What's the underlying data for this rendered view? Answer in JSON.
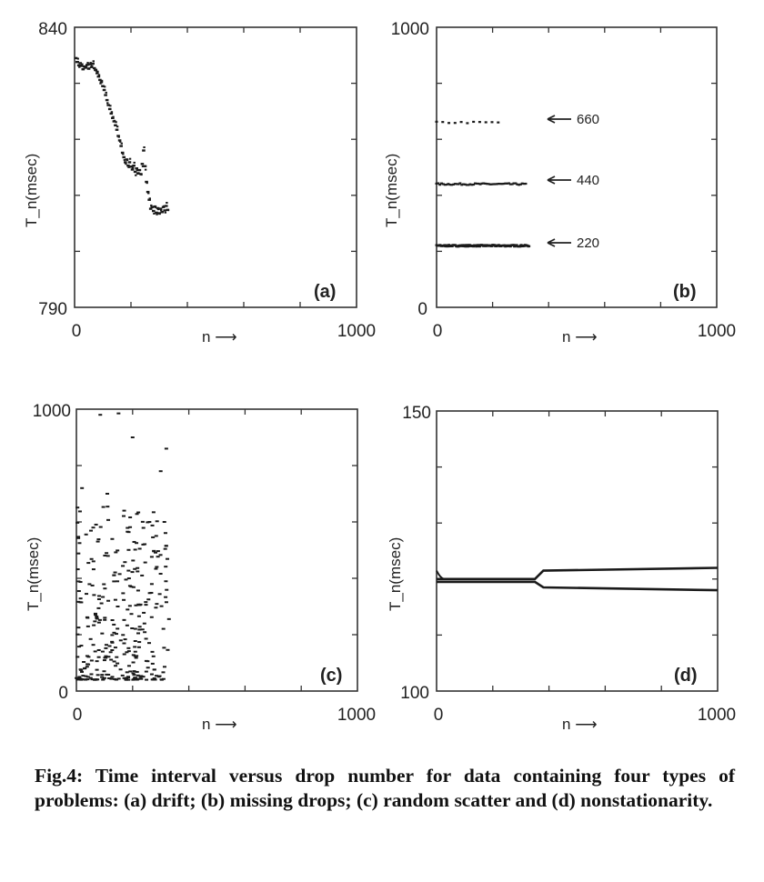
{
  "caption": "Fig.4: Time interval versus drop number for data containing four types of problems: (a) drift; (b) missing drops; (c) random scatter and (d) nonstationarity.",
  "colors": {
    "ink": "#222222",
    "frame": "#333333",
    "points": "#1a1a1a"
  },
  "chart_data": [
    {
      "panel": "(a)",
      "type": "scatter",
      "xlabel": "n",
      "ylabel": "T_n(msec)",
      "xlim": [
        0,
        1000
      ],
      "ylim": [
        790,
        840
      ],
      "x_ticks": [
        "0",
        "1000"
      ],
      "y_ticks": [
        "790",
        "840"
      ],
      "series": [
        {
          "points": [
            [
              5,
              834.5
            ],
            [
              10,
              833.8
            ],
            [
              15,
              833.2
            ],
            [
              20,
              833.6
            ],
            [
              25,
              833.1
            ],
            [
              30,
              832.5
            ],
            [
              35,
              833.0
            ],
            [
              40,
              832.8
            ],
            [
              45,
              833.3
            ],
            [
              50,
              832.6
            ],
            [
              55,
              833.4
            ],
            [
              60,
              832.9
            ],
            [
              65,
              833.5
            ],
            [
              70,
              832.7
            ],
            [
              75,
              832.4
            ],
            [
              80,
              831.8
            ],
            [
              85,
              831.2
            ],
            [
              90,
              830.6
            ],
            [
              95,
              830.2
            ],
            [
              100,
              829.5
            ],
            [
              105,
              828.8
            ],
            [
              110,
              827.9
            ],
            [
              115,
              827.0
            ],
            [
              120,
              826.1
            ],
            [
              125,
              825.4
            ],
            [
              130,
              824.6
            ],
            [
              135,
              823.8
            ],
            [
              140,
              823.2
            ],
            [
              145,
              822.5
            ],
            [
              150,
              821.7
            ],
            [
              155,
              820.6
            ],
            [
              160,
              819.8
            ],
            [
              165,
              818.8
            ],
            [
              170,
              817.6
            ],
            [
              175,
              816.8
            ],
            [
              180,
              815.9
            ],
            [
              185,
              816.4
            ],
            [
              190,
              815.3
            ],
            [
              195,
              815.9
            ],
            [
              200,
              815.1
            ],
            [
              205,
              814.6
            ],
            [
              210,
              815.3
            ],
            [
              215,
              814.2
            ],
            [
              220,
              814.8
            ],
            [
              225,
              813.9
            ],
            [
              230,
              814.5
            ],
            [
              235,
              813.8
            ],
            [
              240,
              815.6
            ],
            [
              245,
              818.0
            ],
            [
              250,
              815.2
            ],
            [
              255,
              812.4
            ],
            [
              260,
              810.6
            ],
            [
              265,
              809.2
            ],
            [
              270,
              807.6
            ],
            [
              275,
              807.9
            ],
            [
              280,
              807.2
            ],
            [
              285,
              808.0
            ],
            [
              290,
              806.9
            ],
            [
              295,
              807.7
            ],
            [
              300,
              806.8
            ],
            [
              305,
              807.6
            ],
            [
              310,
              807.0
            ],
            [
              315,
              807.9
            ],
            [
              320,
              807.3
            ],
            [
              325,
              808.1
            ],
            [
              330,
              807.4
            ]
          ]
        }
      ]
    },
    {
      "panel": "(b)",
      "type": "scatter",
      "xlabel": "n",
      "ylabel": "T_n(msec)",
      "xlim": [
        0,
        1000
      ],
      "ylim": [
        0,
        1000
      ],
      "x_ticks": [
        "0",
        "1000"
      ],
      "y_ticks": [
        "0",
        "1000"
      ],
      "annotations": [
        "660",
        "440",
        "220"
      ],
      "series": [
        {
          "level": 220,
          "x_range": [
            0,
            330
          ],
          "density": "solid"
        },
        {
          "level": 440,
          "x_range": [
            0,
            320
          ],
          "density": "medium"
        },
        {
          "level": 660,
          "x_range": [
            0,
            230
          ],
          "density": "sparse"
        }
      ]
    },
    {
      "panel": "(c)",
      "type": "scatter",
      "xlabel": "n",
      "ylabel": "T_n(msec)",
      "xlim": [
        0,
        1000
      ],
      "ylim": [
        0,
        1000
      ],
      "x_ticks": [
        "0",
        "1000"
      ],
      "y_ticks": [
        "0",
        "1000"
      ],
      "series": [
        {
          "x_range": [
            0,
            330
          ],
          "distribution": "random scatter, denser below 300",
          "outliers": [
            [
              85,
              980
            ],
            [
              150,
              985
            ],
            [
              200,
              900
            ],
            [
              320,
              860
            ],
            [
              300,
              780
            ],
            [
              20,
              720
            ],
            [
              110,
              700
            ],
            [
              170,
              640
            ],
            [
              260,
              600
            ],
            [
              60,
              580
            ]
          ]
        }
      ]
    },
    {
      "panel": "(d)",
      "type": "line",
      "xlabel": "n",
      "ylabel": "T_n(msec)",
      "xlim": [
        0,
        1000
      ],
      "ylim": [
        100,
        150
      ],
      "x_ticks": [
        "0",
        "1000"
      ],
      "y_ticks": [
        "100",
        "150"
      ],
      "series": [
        {
          "name": "",
          "x": [
            0,
            350,
            380,
            1000
          ],
          "values": [
            120,
            120,
            121.5,
            122
          ]
        },
        {
          "name": "",
          "x": [
            0,
            350,
            380,
            1000
          ],
          "values": [
            119.5,
            119.5,
            118.5,
            118
          ]
        }
      ]
    }
  ]
}
